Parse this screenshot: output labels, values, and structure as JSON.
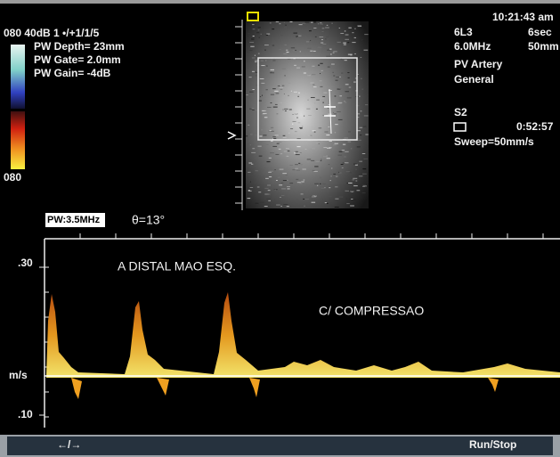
{
  "status": {
    "line1": "080 40dB  1 •/+1/1/5",
    "depth": "PW Depth= 23mm",
    "gate": "PW Gate= 2.0mm",
    "gain": "PW Gain= -4dB"
  },
  "color_bar": {
    "top": "080",
    "bottom": "080"
  },
  "info": {
    "time": "10:21:43 am",
    "probe": "6L3",
    "duration": "6sec",
    "frequency": "6.0MHz",
    "range": "50mm",
    "preset": "PV Artery",
    "mode": "General",
    "channel": "S2",
    "clock": "0:52:57",
    "sweep": "Sweep=50mm/s"
  },
  "doppler": {
    "frequency": "PW:3.5MHz",
    "angle": "θ=13°",
    "scale_top": ".30",
    "unit": "m/s",
    "scale_bottom": ".10",
    "annotation1": "A DISTAL MAO ESQ.",
    "annotation2": "C/ COMPRESSAO"
  },
  "toolbar": {
    "left": "←/→",
    "right": "Run/Stop"
  }
}
